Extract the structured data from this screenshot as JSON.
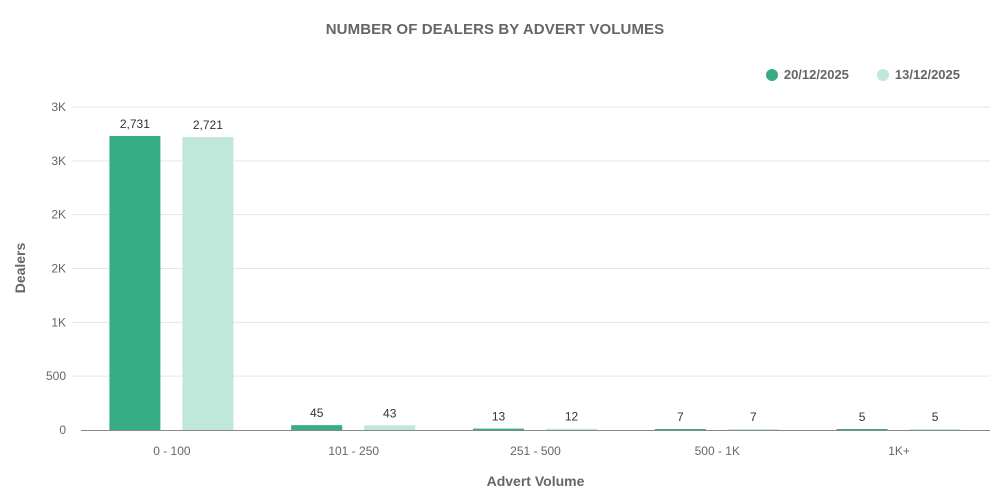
{
  "chart_data": {
    "type": "bar",
    "title": "NUMBER OF DEALERS BY ADVERT VOLUMES",
    "xlabel": "Advert Volume",
    "ylabel": "Dealers",
    "categories": [
      "0 - 100",
      "101 - 250",
      "251 - 500",
      "500 - 1K",
      "1K+"
    ],
    "series": [
      {
        "name": "20/12/2025",
        "color": "#36ad84",
        "values": [
          2731,
          45,
          13,
          7,
          5
        ],
        "labels": [
          "2,731",
          "45",
          "13",
          "7",
          "5"
        ]
      },
      {
        "name": "13/12/2025",
        "color": "#bfe8da",
        "values": [
          2721,
          43,
          12,
          7,
          5
        ],
        "labels": [
          "2,721",
          "43",
          "12",
          "7",
          "5"
        ]
      }
    ],
    "yticks": [
      0,
      500,
      1000,
      1500,
      2000,
      2500,
      3000
    ],
    "ytick_labels": [
      "0",
      "500",
      "1K",
      "2K",
      "2K",
      "3K",
      "3K"
    ],
    "ylim": [
      0,
      3000
    ],
    "grid": true,
    "legend_position": "top-right"
  }
}
